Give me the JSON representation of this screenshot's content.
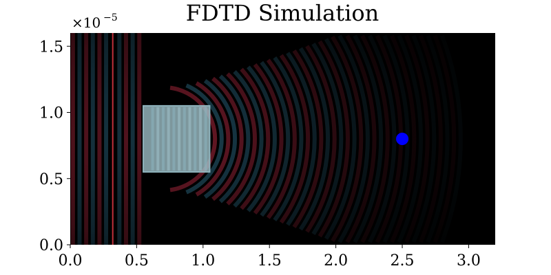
{
  "chart_data": {
    "type": "heatmap",
    "title": "FDTD Simulation",
    "xlabel": "",
    "ylabel": "",
    "y_scale_label": "×10",
    "y_scale_exponent": "−5",
    "xlim": [
      0.0,
      3.2
    ],
    "ylim": [
      0.0,
      1.6
    ],
    "x_ticks": [
      0.0,
      0.5,
      1.0,
      1.5,
      2.0,
      2.5,
      3.0
    ],
    "x_tick_labels": [
      "0.0",
      "0.5",
      "1.0",
      "1.5",
      "2.0",
      "2.5",
      "3.0"
    ],
    "y_ticks": [
      0.0,
      0.5,
      1.0,
      1.5
    ],
    "y_tick_labels": [
      "0.0",
      "0.5",
      "1.0",
      "1.5"
    ],
    "grid": false,
    "background_color": "#000000",
    "source_line": {
      "x": 0.32,
      "color": "#c0303a"
    },
    "scatterer": {
      "x0": 0.55,
      "x1": 1.05,
      "y0": 0.55,
      "y1": 1.05,
      "fill": "#a7c9d1",
      "stroke": "#8fb4bd",
      "opacity": 0.75
    },
    "detector": {
      "x": 2.5,
      "y": 0.8,
      "color": "#0000ff"
    },
    "wave": {
      "positive_color": "#7a1c2c",
      "negative_color": "#1f4a5c",
      "wavelength": 0.1
    }
  }
}
